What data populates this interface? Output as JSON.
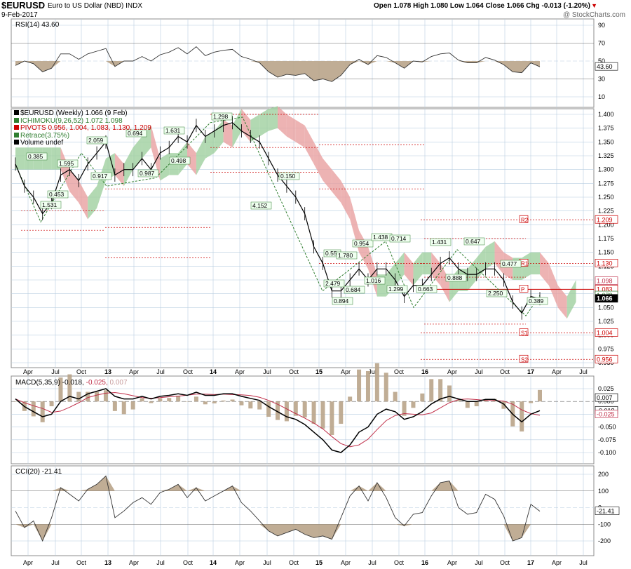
{
  "header": {
    "symbol": "$EURUSD",
    "description": "Euro to US Dollar (NBD)  INDX",
    "date": "9-Feb-2017",
    "watermark": "@ StockCharts.com",
    "ohlc": "Open 1.078  High 1.080  Low 1.064  Close 1.066  Chg -0.013 (-1.20%)",
    "down_marker": "▼"
  },
  "colors": {
    "price": "#000000",
    "grid": "#b8cde0",
    "cloud_bull": "#9fcf9f",
    "cloud_bear": "#e8a0a0",
    "pivot": "#cc0000",
    "retrace": "#2e7d2e",
    "osc_fill": "#b9a48a",
    "macd_signal": "#c0304a"
  },
  "panels": {
    "rsi": {
      "label": "RSI(14) 43.60",
      "last_value": "43.60",
      "ticks": [
        "90",
        "70",
        "50",
        "30",
        "10"
      ]
    },
    "price": {
      "legend": [
        {
          "text": "$EURUSD (Weekly) 1.066 (9 Feb)",
          "color": "#000000"
        },
        {
          "text": "ICHIMOKU(9,26,52) 1.072 1.098",
          "color": "#2e7d2e"
        },
        {
          "text": "PIVOTS 0.956, 1.004, 1.083, 1.130, 1.209",
          "color": "#cc0000"
        },
        {
          "text": "Retrace(3.75%)",
          "color": "#2e7d2e"
        },
        {
          "text": "Volume undef",
          "color": "#000000"
        }
      ],
      "ticks": [
        "1.400",
        "1.375",
        "1.350",
        "1.325",
        "1.300",
        "1.275",
        "1.250",
        "1.225",
        "1.200",
        "1.175",
        "1.150",
        "1.125",
        "1.100",
        "1.075",
        "1.050",
        "1.025",
        "1.000",
        "0.975",
        "0.950"
      ],
      "pivot_labels": [
        {
          "label": "R2",
          "value": "1.209"
        },
        {
          "label": "R1",
          "value": "1.130"
        },
        {
          "label": "P",
          "value": "1.083"
        },
        {
          "label": "S1",
          "value": "1.004"
        },
        {
          "label": "S2",
          "value": "0.956"
        }
      ],
      "cloud_value_labels": [
        "1.098",
        "1.072",
        "1.066"
      ],
      "retrace_labels": [
        "0.385",
        "1.595",
        "2.059",
        "0.694",
        "1.631",
        "1.298",
        "0.917",
        "0.987",
        "0.498",
        "1.531",
        "0.453",
        "4.152",
        "0.150",
        "0.55",
        "1.780",
        "0.954",
        "1.438",
        "0.714",
        "1.431",
        "0.647",
        "2.479",
        "0.684",
        "0.894",
        "1.016",
        "1.299",
        "0.663",
        "0.888",
        "0.477",
        "2.250",
        "0.389"
      ]
    },
    "macd": {
      "label_main": "MACD(5,35,9) -0.018,",
      "label_signal": "-0.025,",
      "label_hist": "0.007",
      "value_labels": [
        "0.007",
        "-0.018",
        "-0.025"
      ],
      "ticks": [
        "0.025",
        "0.000",
        "-0.025",
        "-0.050",
        "-0.075",
        "-0.100"
      ]
    },
    "cci": {
      "label": "CCI(20) -21.41",
      "last_value": "-21.41",
      "ticks": [
        "200",
        "100",
        "0",
        "-100",
        "-200"
      ]
    }
  },
  "x_axis": {
    "labels": [
      "Apr",
      "Jul",
      "Oct",
      "13",
      "Apr",
      "Jul",
      "Oct",
      "14",
      "Apr",
      "Jul",
      "Oct",
      "15",
      "Apr",
      "Jul",
      "Oct",
      "16",
      "Apr",
      "Jul",
      "Oct",
      "17",
      "Apr",
      "Jul"
    ]
  },
  "chart_data": {
    "type": "line",
    "title": "$EURUSD",
    "subtitle": "Euro to US Dollar (NBD)  INDX",
    "frequency": "Weekly",
    "x": [
      "2012-04",
      "2012-05",
      "2012-06",
      "2012-07",
      "2012-08",
      "2012-09",
      "2012-10",
      "2012-11",
      "2012-12",
      "2013-01",
      "2013-02",
      "2013-03",
      "2013-04",
      "2013-05",
      "2013-06",
      "2013-07",
      "2013-08",
      "2013-09",
      "2013-10",
      "2013-11",
      "2013-12",
      "2014-01",
      "2014-02",
      "2014-03",
      "2014-04",
      "2014-05",
      "2014-06",
      "2014-07",
      "2014-08",
      "2014-09",
      "2014-10",
      "2014-11",
      "2014-12",
      "2015-01",
      "2015-02",
      "2015-03",
      "2015-04",
      "2015-05",
      "2015-06",
      "2015-07",
      "2015-08",
      "2015-09",
      "2015-10",
      "2015-11",
      "2015-12",
      "2016-01",
      "2016-02",
      "2016-03",
      "2016-04",
      "2016-05",
      "2016-06",
      "2016-07",
      "2016-08",
      "2016-09",
      "2016-10",
      "2016-11",
      "2016-12",
      "2017-01",
      "2017-02"
    ],
    "series": [
      {
        "name": "$EURUSD",
        "values": [
          1.31,
          1.27,
          1.25,
          1.22,
          1.24,
          1.29,
          1.3,
          1.28,
          1.31,
          1.33,
          1.35,
          1.29,
          1.3,
          1.3,
          1.32,
          1.3,
          1.33,
          1.34,
          1.36,
          1.35,
          1.38,
          1.36,
          1.37,
          1.38,
          1.385,
          1.37,
          1.36,
          1.35,
          1.32,
          1.29,
          1.27,
          1.25,
          1.22,
          1.16,
          1.13,
          1.08,
          1.08,
          1.1,
          1.12,
          1.1,
          1.12,
          1.12,
          1.1,
          1.07,
          1.09,
          1.09,
          1.11,
          1.13,
          1.14,
          1.12,
          1.11,
          1.11,
          1.12,
          1.12,
          1.1,
          1.06,
          1.04,
          1.07,
          1.066
        ]
      },
      {
        "name": "RSI(14)",
        "values": [
          45,
          50,
          47,
          38,
          42,
          58,
          58,
          52,
          58,
          61,
          64,
          44,
          50,
          50,
          55,
          50,
          57,
          60,
          65,
          58,
          66,
          56,
          60,
          62,
          63,
          55,
          52,
          48,
          38,
          32,
          35,
          34,
          36,
          28,
          30,
          27,
          34,
          46,
          52,
          46,
          56,
          54,
          48,
          42,
          50,
          49,
          55,
          58,
          59,
          51,
          48,
          48,
          54,
          51,
          46,
          38,
          37,
          48,
          43.6
        ]
      },
      {
        "name": "MACD(5,35,9)",
        "values": [
          0.005,
          -0.01,
          -0.02,
          -0.03,
          -0.025,
          0.0,
          0.01,
          0.005,
          0.015,
          0.02,
          0.025,
          0.01,
          0.005,
          0.005,
          0.01,
          0.005,
          0.01,
          0.012,
          0.015,
          0.012,
          0.018,
          0.012,
          0.012,
          0.015,
          0.015,
          0.01,
          0.006,
          0.002,
          -0.01,
          -0.02,
          -0.03,
          -0.035,
          -0.045,
          -0.06,
          -0.075,
          -0.095,
          -0.1,
          -0.085,
          -0.06,
          -0.05,
          -0.025,
          -0.015,
          -0.02,
          -0.035,
          -0.03,
          -0.02,
          -0.005,
          0.005,
          0.01,
          0.005,
          0.0,
          0.0,
          0.004,
          0.004,
          -0.005,
          -0.025,
          -0.04,
          -0.025,
          -0.018
        ]
      },
      {
        "name": "CCI(20)",
        "values": [
          -20,
          -120,
          -80,
          -200,
          -60,
          120,
          80,
          40,
          110,
          140,
          190,
          -60,
          -20,
          30,
          60,
          20,
          90,
          110,
          140,
          60,
          120,
          40,
          70,
          100,
          130,
          30,
          -20,
          -80,
          -140,
          -170,
          -150,
          -130,
          -160,
          -180,
          -170,
          -190,
          -60,
          70,
          130,
          40,
          150,
          60,
          -60,
          -110,
          -40,
          -30,
          70,
          150,
          160,
          0,
          -40,
          -30,
          80,
          50,
          -50,
          -200,
          -180,
          20,
          -21.41
        ]
      }
    ],
    "ylabel": "",
    "ylim": [
      0.95,
      1.4
    ],
    "grid": true,
    "legend": "top-left"
  }
}
